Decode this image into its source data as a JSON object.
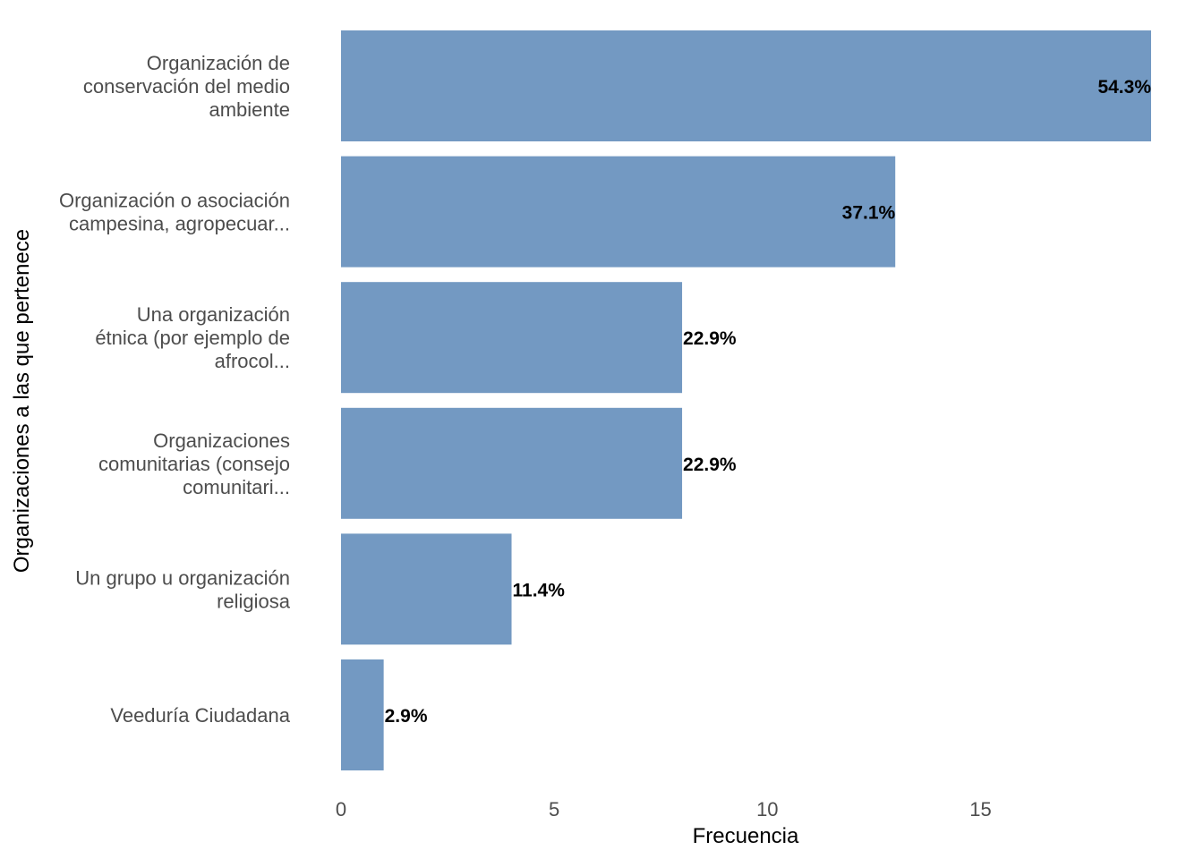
{
  "chart_data": {
    "type": "bar",
    "orientation": "horizontal",
    "categories": [
      [
        "Organización de",
        "conservación del medio",
        "ambiente"
      ],
      [
        "Organización o asociación",
        "campesina, agropecuar..."
      ],
      [
        "Una organización",
        "étnica (por ejemplo de",
        "afrocol..."
      ],
      [
        "Organizaciones",
        "comunitarias (consejo",
        "comunitari..."
      ],
      [
        "Un grupo u organización",
        "religiosa"
      ],
      [
        "Veeduría Ciudadana"
      ]
    ],
    "values": [
      19,
      13,
      8,
      8,
      4,
      1
    ],
    "data_labels": [
      "54.3%",
      "37.1%",
      "22.9%",
      "22.9%",
      "11.4%",
      "2.9%"
    ],
    "xlabel": "Frecuencia",
    "ylabel": "Organizaciones a las que pertenece",
    "xlim": [
      0,
      19
    ],
    "xticks": [
      0,
      5,
      10,
      15
    ],
    "grid": false,
    "legend": "none",
    "bar_color": "#7399c2"
  }
}
